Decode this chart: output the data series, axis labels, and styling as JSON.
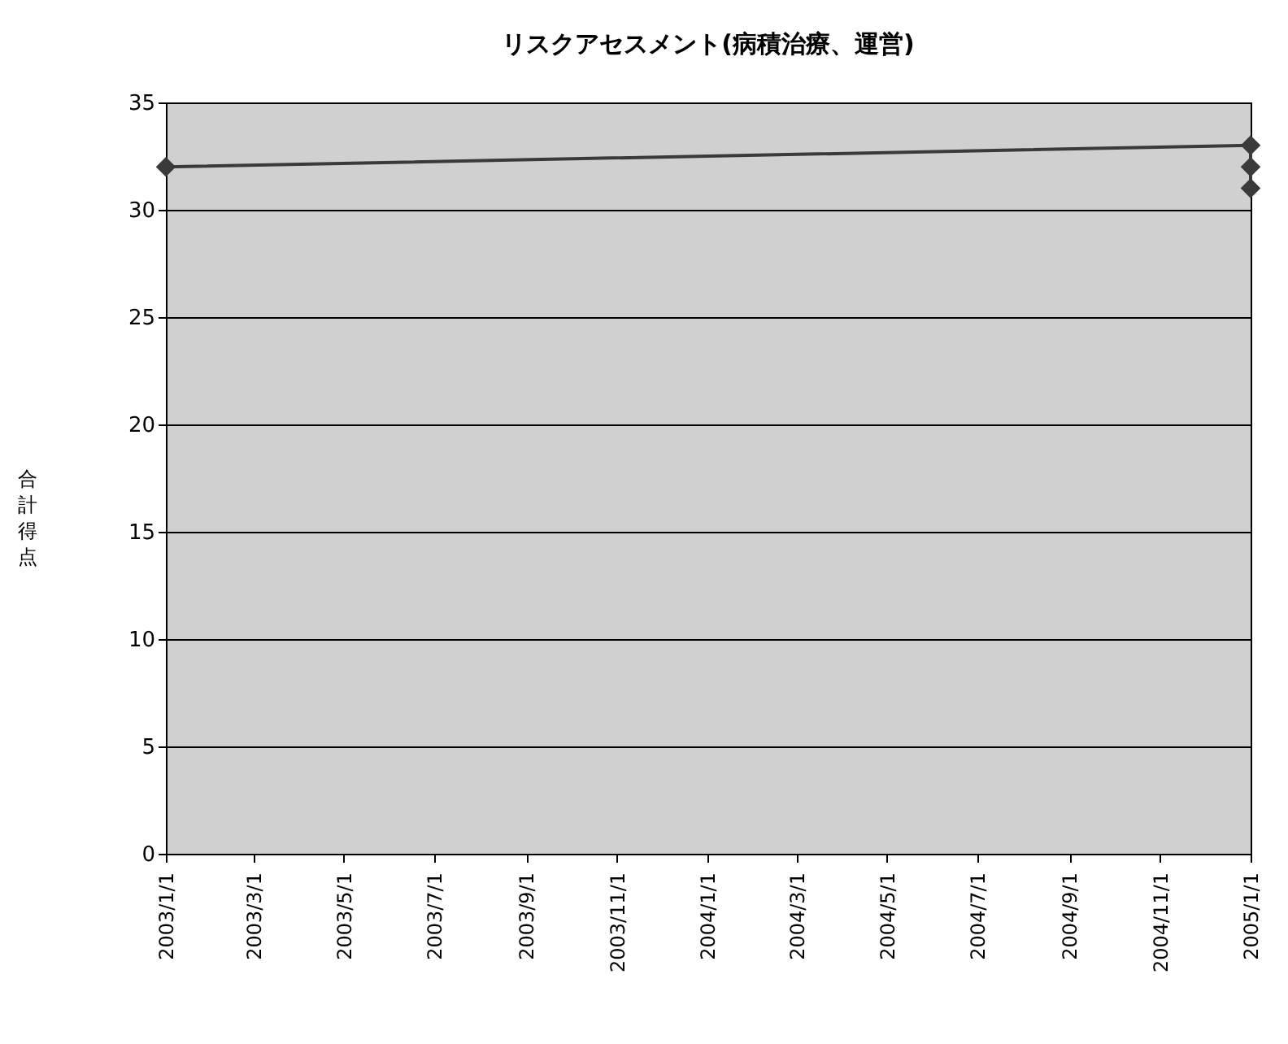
{
  "chart_data": {
    "type": "line",
    "title": "リスクアセスメント(病積治療、運営)",
    "ylabel": "合計得点",
    "x": [
      "2003-01-01",
      "2005-01-01",
      "2005-01-01",
      "2005-01-01"
    ],
    "series": [
      {
        "color": "#3a3a3a",
        "values": [
          32,
          33,
          32,
          31
        ]
      }
    ],
    "xlim": [
      "2003-01-01",
      "2005-01-01"
    ],
    "xticks": [
      {
        "value": "2003-01-01",
        "label": "2003/1/1"
      },
      {
        "value": "2003-03-01",
        "label": "2003/3/1"
      },
      {
        "value": "2003-05-01",
        "label": "2003/5/1"
      },
      {
        "value": "2003-07-01",
        "label": "2003/7/1"
      },
      {
        "value": "2003-09-01",
        "label": "2003/9/1"
      },
      {
        "value": "2003-11-01",
        "label": "2003/11/1"
      },
      {
        "value": "2004-01-01",
        "label": "2004/1/1"
      },
      {
        "value": "2004-03-01",
        "label": "2004/3/1"
      },
      {
        "value": "2004-05-01",
        "label": "2004/5/1"
      },
      {
        "value": "2004-07-01",
        "label": "2004/7/1"
      },
      {
        "value": "2004-09-01",
        "label": "2004/9/1"
      },
      {
        "value": "2004-11-01",
        "label": "2004/11/1"
      },
      {
        "value": "2005-01-01",
        "label": "2005/1/1"
      }
    ],
    "ylim": [
      0,
      35
    ],
    "yticks": [
      0,
      5,
      10,
      15,
      20,
      25,
      30,
      35
    ],
    "grid": "y",
    "marker": "diamond",
    "line_style": "solid"
  }
}
